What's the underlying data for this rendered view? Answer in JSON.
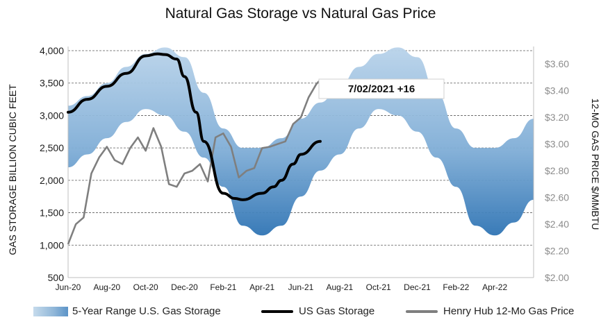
{
  "chart_data": {
    "type": "line",
    "title": "Natural Gas Storage vs Natural Gas Price",
    "ylabel_left": "GAS STORAGE BILLION CUBIC FEET",
    "ylabel_right": "12-MO GAS PRICE $/MMBTU",
    "ylim_left": [
      500,
      4000
    ],
    "ylim_right": [
      2.0,
      3.7
    ],
    "yticks_left": [
      "500",
      "1,000",
      "1,500",
      "2,000",
      "2,500",
      "3,000",
      "3,500",
      "4,000"
    ],
    "yticks_right": [
      "$2.00",
      "$2.20",
      "$2.40",
      "$2.60",
      "$2.80",
      "$3.00",
      "$3.20",
      "$3.40",
      "$3.60"
    ],
    "x_tick_labels": [
      "Jun-20",
      "Aug-20",
      "Oct-20",
      "Dec-20",
      "Feb-21",
      "Apr-21",
      "Jun-21",
      "Aug-21",
      "Oct-21",
      "Dec-21",
      "Feb-22",
      "Apr-22"
    ],
    "grid": "horizontal dashed",
    "annotation": "7/02/2021  +16",
    "series": [
      {
        "name": "5-Year Range U.S. Gas Storage",
        "axis": "left",
        "kind": "band",
        "color": "#4f8dc4",
        "x": [
          0.0,
          0.5,
          1.0,
          1.5,
          2.0,
          2.5,
          3.0,
          3.5,
          4.0,
          4.5,
          5.0,
          5.5,
          6.0,
          6.5,
          7.0,
          7.5,
          8.0,
          8.5,
          9.0,
          9.5,
          10.0,
          10.5,
          11.0,
          11.5,
          12.0
        ],
        "low": [
          2200,
          2400,
          2650,
          2900,
          3100,
          3000,
          2750,
          2350,
          1900,
          1300,
          1150,
          1300,
          1750,
          2150,
          2400,
          2800,
          3100,
          3000,
          2750,
          2350,
          1900,
          1300,
          1150,
          1350,
          1700
        ],
        "high": [
          3150,
          3300,
          3500,
          3750,
          3950,
          4050,
          3900,
          3350,
          2800,
          2500,
          2500,
          2650,
          2950,
          3200,
          3450,
          3750,
          3950,
          4050,
          3900,
          3350,
          2800,
          2500,
          2500,
          2650,
          2950
        ]
      },
      {
        "name": "US Gas Storage",
        "axis": "left",
        "color": "#000000",
        "x": [
          0.0,
          0.5,
          1.0,
          1.5,
          2.0,
          2.3,
          2.5,
          2.8,
          3.0,
          3.3,
          3.5,
          4.0,
          4.3,
          4.5,
          5.0,
          5.3,
          5.5,
          5.8,
          6.0,
          6.5
        ],
        "values": [
          3050,
          3250,
          3450,
          3650,
          3920,
          3950,
          3940,
          3870,
          3600,
          3050,
          2600,
          1800,
          1720,
          1700,
          1800,
          1900,
          2000,
          2250,
          2400,
          2600
        ]
      },
      {
        "name": "Henry Hub 12-Mo Gas Price",
        "axis": "right",
        "color": "#7f7f7f",
        "x": [
          0.0,
          0.2,
          0.4,
          0.6,
          0.8,
          1.0,
          1.2,
          1.4,
          1.6,
          1.8,
          2.0,
          2.2,
          2.4,
          2.6,
          2.8,
          3.0,
          3.2,
          3.4,
          3.6,
          3.8,
          4.0,
          4.2,
          4.4,
          4.6,
          4.8,
          5.0,
          5.2,
          5.4,
          5.6,
          5.8,
          6.0,
          6.2,
          6.4,
          6.5
        ],
        "values": [
          2.25,
          2.4,
          2.45,
          2.78,
          2.9,
          2.98,
          2.88,
          2.85,
          2.97,
          3.05,
          2.95,
          3.12,
          2.98,
          2.7,
          2.68,
          2.78,
          2.8,
          2.85,
          2.72,
          3.05,
          3.08,
          2.98,
          2.75,
          2.8,
          2.82,
          2.97,
          2.98,
          3.0,
          3.02,
          3.15,
          3.2,
          3.35,
          3.45,
          3.48
        ]
      }
    ]
  }
}
